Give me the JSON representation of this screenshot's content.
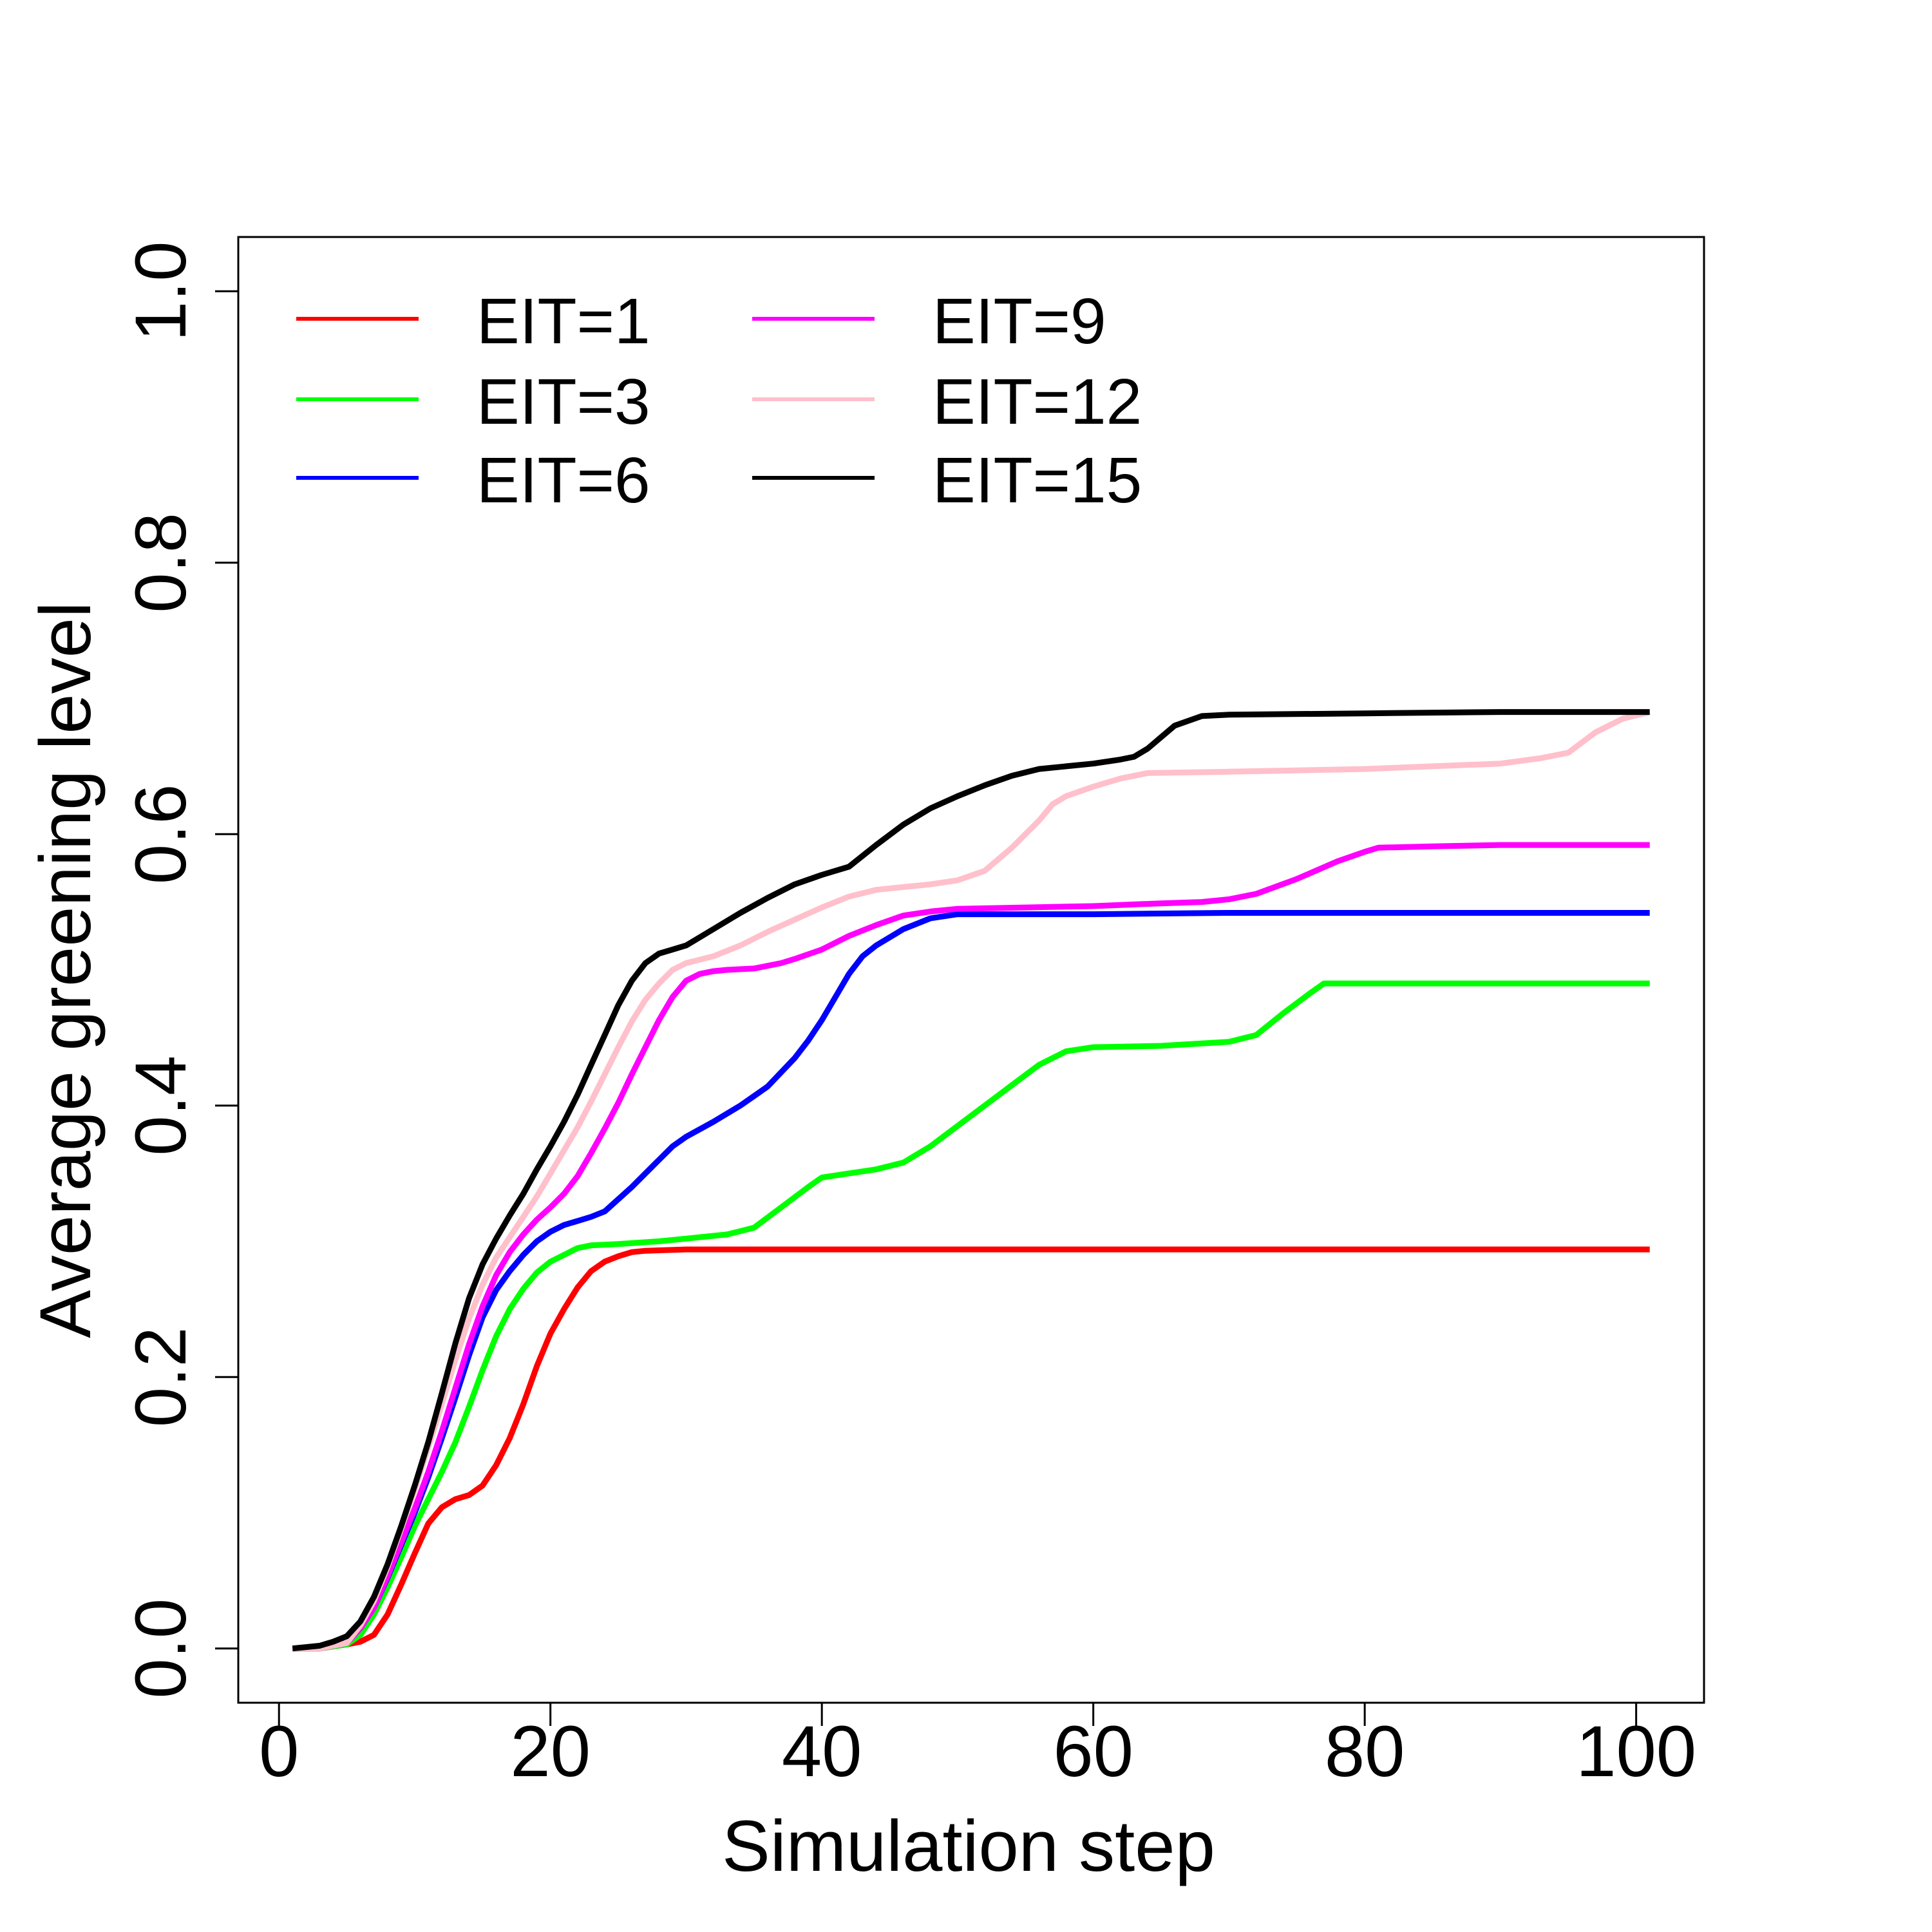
{
  "chart_data": {
    "type": "line",
    "title": "",
    "xlabel": "Simulation step",
    "ylabel": "Average greening level",
    "xlim": [
      -3,
      105
    ],
    "ylim": [
      -0.04,
      1.04
    ],
    "xticks": [
      0,
      20,
      40,
      60,
      80,
      100
    ],
    "xtick_labels": [
      "0",
      "20",
      "40",
      "60",
      "80",
      "100"
    ],
    "yticks": [
      0.0,
      0.2,
      0.4,
      0.6,
      0.8,
      1.0
    ],
    "ytick_labels": [
      "0.0",
      "0.2",
      "0.4",
      "0.6",
      "0.8",
      "1.0"
    ],
    "grid": false,
    "legend_position": "top-left",
    "series": [
      {
        "name": "EIT=1",
        "color": "#ff0000",
        "x": [
          1,
          3,
          5,
          6,
          7,
          8,
          9,
          10,
          11,
          12,
          13,
          14,
          15,
          16,
          17,
          18,
          19,
          20,
          21,
          22,
          23,
          24,
          25,
          26,
          27,
          30,
          40,
          60,
          80,
          101
        ],
        "y": [
          0.0,
          0.0,
          0.003,
          0.005,
          0.01,
          0.025,
          0.047,
          0.07,
          0.092,
          0.104,
          0.11,
          0.113,
          0.12,
          0.135,
          0.155,
          0.18,
          0.208,
          0.232,
          0.25,
          0.266,
          0.278,
          0.285,
          0.289,
          0.292,
          0.293,
          0.294,
          0.294,
          0.294,
          0.294,
          0.294
        ]
      },
      {
        "name": "EIT=3",
        "color": "#00ff00",
        "x": [
          1,
          3,
          5,
          6,
          7,
          8,
          9,
          10,
          11,
          12,
          13,
          14,
          15,
          16,
          17,
          18,
          19,
          20,
          21,
          22,
          23,
          25,
          28,
          30,
          33,
          35,
          37,
          39,
          40,
          42,
          44,
          46,
          48,
          50,
          52,
          54,
          56,
          58,
          60,
          65,
          70,
          72,
          74,
          76,
          77,
          80,
          90,
          101
        ],
        "y": [
          0.0,
          0.0,
          0.003,
          0.01,
          0.025,
          0.045,
          0.067,
          0.09,
          0.11,
          0.13,
          0.152,
          0.178,
          0.205,
          0.23,
          0.25,
          0.265,
          0.277,
          0.285,
          0.29,
          0.295,
          0.297,
          0.298,
          0.3,
          0.302,
          0.305,
          0.31,
          0.325,
          0.34,
          0.347,
          0.35,
          0.353,
          0.358,
          0.37,
          0.385,
          0.4,
          0.415,
          0.43,
          0.44,
          0.443,
          0.444,
          0.447,
          0.452,
          0.468,
          0.483,
          0.49,
          0.49,
          0.49,
          0.49
        ]
      },
      {
        "name": "EIT=6",
        "color": "#0000ff",
        "x": [
          1,
          3,
          5,
          6,
          7,
          8,
          9,
          10,
          11,
          12,
          13,
          14,
          15,
          16,
          17,
          18,
          19,
          20,
          21,
          22,
          23,
          24,
          26,
          28,
          29,
          30,
          32,
          34,
          35,
          36,
          38,
          39,
          40,
          41,
          42,
          43,
          44,
          46,
          48,
          50,
          60,
          70,
          80,
          90,
          101
        ],
        "y": [
          0.0,
          0.0,
          0.004,
          0.015,
          0.03,
          0.052,
          0.076,
          0.1,
          0.126,
          0.155,
          0.185,
          0.216,
          0.244,
          0.264,
          0.278,
          0.29,
          0.3,
          0.307,
          0.312,
          0.315,
          0.318,
          0.322,
          0.34,
          0.36,
          0.37,
          0.377,
          0.388,
          0.4,
          0.407,
          0.414,
          0.435,
          0.448,
          0.463,
          0.48,
          0.497,
          0.51,
          0.518,
          0.53,
          0.538,
          0.541,
          0.541,
          0.542,
          0.542,
          0.542,
          0.542
        ]
      },
      {
        "name": "EIT=9",
        "color": "#ff00ff",
        "x": [
          1,
          3,
          5,
          6,
          7,
          8,
          9,
          10,
          11,
          12,
          13,
          14,
          15,
          16,
          17,
          18,
          19,
          20,
          21,
          22,
          23,
          24,
          25,
          26,
          27,
          28,
          29,
          30,
          31,
          32,
          33,
          35,
          37,
          38,
          40,
          42,
          44,
          46,
          48,
          50,
          55,
          60,
          65,
          68,
          70,
          72,
          75,
          78,
          80,
          81,
          85,
          90,
          101
        ],
        "y": [
          0.0,
          0.0,
          0.004,
          0.015,
          0.03,
          0.053,
          0.078,
          0.103,
          0.13,
          0.16,
          0.192,
          0.224,
          0.252,
          0.275,
          0.292,
          0.305,
          0.316,
          0.325,
          0.335,
          0.348,
          0.365,
          0.383,
          0.402,
          0.423,
          0.443,
          0.463,
          0.48,
          0.492,
          0.497,
          0.499,
          0.5,
          0.501,
          0.505,
          0.508,
          0.515,
          0.525,
          0.533,
          0.54,
          0.543,
          0.545,
          0.546,
          0.547,
          0.549,
          0.55,
          0.552,
          0.556,
          0.567,
          0.58,
          0.587,
          0.59,
          0.591,
          0.592,
          0.592
        ]
      },
      {
        "name": "EIT=12",
        "color": "#ffc0cb",
        "x": [
          1,
          3,
          5,
          6,
          7,
          8,
          9,
          10,
          11,
          12,
          13,
          14,
          15,
          16,
          17,
          18,
          19,
          20,
          21,
          22,
          23,
          24,
          25,
          26,
          27,
          28,
          29,
          30,
          32,
          34,
          36,
          38,
          40,
          42,
          44,
          46,
          48,
          50,
          52,
          54,
          56,
          57,
          58,
          60,
          62,
          64,
          70,
          80,
          90,
          93,
          95,
          97,
          99,
          101
        ],
        "y": [
          0.0,
          0.0,
          0.004,
          0.017,
          0.035,
          0.06,
          0.088,
          0.117,
          0.148,
          0.18,
          0.213,
          0.243,
          0.268,
          0.288,
          0.303,
          0.318,
          0.333,
          0.35,
          0.367,
          0.384,
          0.403,
          0.423,
          0.443,
          0.462,
          0.478,
          0.49,
          0.5,
          0.505,
          0.51,
          0.518,
          0.528,
          0.537,
          0.546,
          0.554,
          0.559,
          0.561,
          0.563,
          0.566,
          0.573,
          0.59,
          0.61,
          0.622,
          0.628,
          0.635,
          0.641,
          0.645,
          0.646,
          0.648,
          0.652,
          0.656,
          0.66,
          0.675,
          0.685,
          0.69
        ]
      },
      {
        "name": "EIT=15",
        "color": "#000000",
        "x": [
          1,
          3,
          4,
          5,
          6,
          7,
          8,
          9,
          10,
          11,
          12,
          13,
          14,
          15,
          16,
          17,
          18,
          19,
          20,
          21,
          22,
          23,
          24,
          25,
          26,
          27,
          28,
          29,
          30,
          32,
          34,
          36,
          38,
          40,
          42,
          44,
          46,
          48,
          50,
          52,
          54,
          56,
          58,
          60,
          62,
          63,
          64,
          66,
          68,
          70,
          80,
          90,
          101
        ],
        "y": [
          0.0,
          0.002,
          0.005,
          0.009,
          0.02,
          0.038,
          0.062,
          0.09,
          0.12,
          0.152,
          0.188,
          0.225,
          0.258,
          0.283,
          0.302,
          0.319,
          0.335,
          0.353,
          0.37,
          0.388,
          0.408,
          0.43,
          0.452,
          0.474,
          0.492,
          0.505,
          0.512,
          0.515,
          0.518,
          0.53,
          0.542,
          0.553,
          0.563,
          0.57,
          0.576,
          0.592,
          0.607,
          0.619,
          0.628,
          0.636,
          0.643,
          0.648,
          0.65,
          0.652,
          0.655,
          0.657,
          0.663,
          0.68,
          0.687,
          0.688,
          0.689,
          0.69,
          0.69
        ]
      }
    ]
  }
}
